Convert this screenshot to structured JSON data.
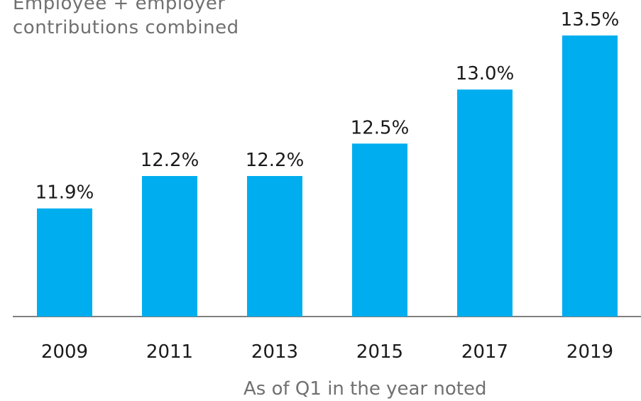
{
  "subtitle": {
    "line1": "Employee + employer",
    "line2": "contributions combined"
  },
  "caption": "As of Q1 in the year noted",
  "colors": {
    "bar": "#00AEEF",
    "axis": "#7f7f7f",
    "text": "#1a1a1a",
    "muted": "#707070"
  },
  "chart_data": {
    "type": "bar",
    "title": "",
    "xlabel": "As of Q1 in the year noted",
    "ylabel": "",
    "ylim": [
      10.9,
      13.5
    ],
    "categories": [
      "2009",
      "2011",
      "2013",
      "2015",
      "2017",
      "2019"
    ],
    "values": [
      11.9,
      12.2,
      12.2,
      12.5,
      13.0,
      13.5
    ],
    "data_labels": [
      "11.9%",
      "12.2%",
      "12.2%",
      "12.5%",
      "13.0%",
      "13.5%"
    ],
    "grid": false,
    "legend": "none"
  }
}
